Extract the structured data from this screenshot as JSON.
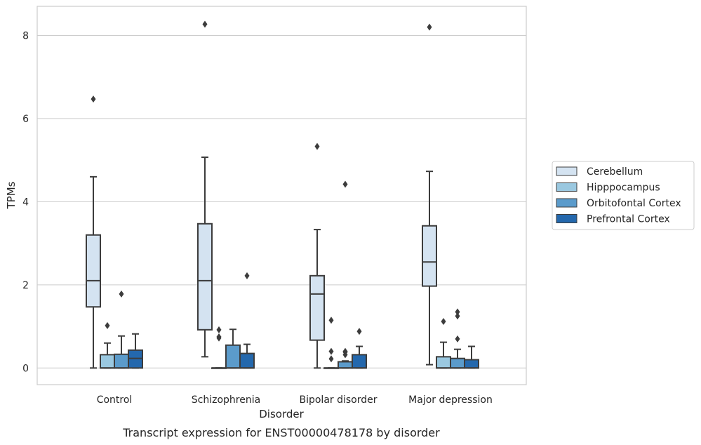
{
  "chart_data": {
    "type": "box",
    "xlabel": "Disorder",
    "ylabel": "TPMs",
    "caption": "Transcript expression for ENST00000478178 by disorder",
    "ylim": [
      -0.4,
      8.7
    ],
    "yticks": [
      0,
      2,
      4,
      6,
      8
    ],
    "grid": "horizontal",
    "legend_position": "right",
    "categories": [
      "Control",
      "Schizophrenia",
      "Bipolar disorder",
      "Major depression"
    ],
    "series": [
      {
        "name": "Cerebellum",
        "color": "#d4e3f1",
        "boxes": [
          {
            "whislo": 0.0,
            "q1": 1.47,
            "med": 2.1,
            "q3": 3.2,
            "whishi": 4.6,
            "fliers": [
              6.47
            ]
          },
          {
            "whislo": 0.27,
            "q1": 0.92,
            "med": 2.1,
            "q3": 3.47,
            "whishi": 5.07,
            "fliers": [
              8.27
            ]
          },
          {
            "whislo": 0.0,
            "q1": 0.67,
            "med": 1.78,
            "q3": 2.22,
            "whishi": 3.33,
            "fliers": [
              5.33
            ]
          },
          {
            "whislo": 0.08,
            "q1": 1.97,
            "med": 2.55,
            "q3": 3.42,
            "whishi": 4.73,
            "fliers": [
              8.2
            ]
          }
        ]
      },
      {
        "name": "Hipppocampus",
        "color": "#9ac8e0",
        "boxes": [
          {
            "whislo": 0.0,
            "q1": 0.0,
            "med": 0.0,
            "q3": 0.32,
            "whishi": 0.6,
            "fliers": [
              1.02
            ]
          },
          {
            "whislo": 0.0,
            "q1": 0.0,
            "med": 0.0,
            "q3": 0.0,
            "whishi": 0.0,
            "fliers": [
              0.72,
              0.75,
              0.92
            ]
          },
          {
            "whislo": 0.0,
            "q1": 0.0,
            "med": 0.0,
            "q3": 0.0,
            "whishi": 0.0,
            "fliers": [
              0.22,
              0.4,
              1.15
            ]
          },
          {
            "whislo": 0.0,
            "q1": 0.0,
            "med": 0.0,
            "q3": 0.27,
            "whishi": 0.62,
            "fliers": [
              1.12
            ]
          }
        ]
      },
      {
        "name": "Orbitofontal Cortex",
        "color": "#5b9bcb",
        "boxes": [
          {
            "whislo": 0.0,
            "q1": 0.0,
            "med": 0.0,
            "q3": 0.33,
            "whishi": 0.77,
            "fliers": [
              1.78
            ]
          },
          {
            "whislo": 0.0,
            "q1": 0.0,
            "med": 0.0,
            "q3": 0.55,
            "whishi": 0.93,
            "fliers": []
          },
          {
            "whislo": 0.0,
            "q1": 0.0,
            "med": 0.0,
            "q3": 0.15,
            "whishi": 0.17,
            "fliers": [
              0.32,
              0.38,
              0.4,
              4.42
            ]
          },
          {
            "whislo": 0.0,
            "q1": 0.0,
            "med": 0.0,
            "q3": 0.23,
            "whishi": 0.45,
            "fliers": [
              0.7,
              1.25,
              1.35
            ]
          }
        ]
      },
      {
        "name": "Prefrontal Cortex",
        "color": "#2468ad",
        "boxes": [
          {
            "whislo": 0.0,
            "q1": 0.0,
            "med": 0.23,
            "q3": 0.43,
            "whishi": 0.82,
            "fliers": []
          },
          {
            "whislo": 0.0,
            "q1": 0.0,
            "med": 0.0,
            "q3": 0.35,
            "whishi": 0.57,
            "fliers": [
              2.22
            ]
          },
          {
            "whislo": 0.0,
            "q1": 0.0,
            "med": 0.0,
            "q3": 0.32,
            "whishi": 0.52,
            "fliers": [
              0.88
            ]
          },
          {
            "whislo": 0.0,
            "q1": 0.0,
            "med": 0.0,
            "q3": 0.2,
            "whishi": 0.52,
            "fliers": []
          }
        ]
      }
    ]
  }
}
